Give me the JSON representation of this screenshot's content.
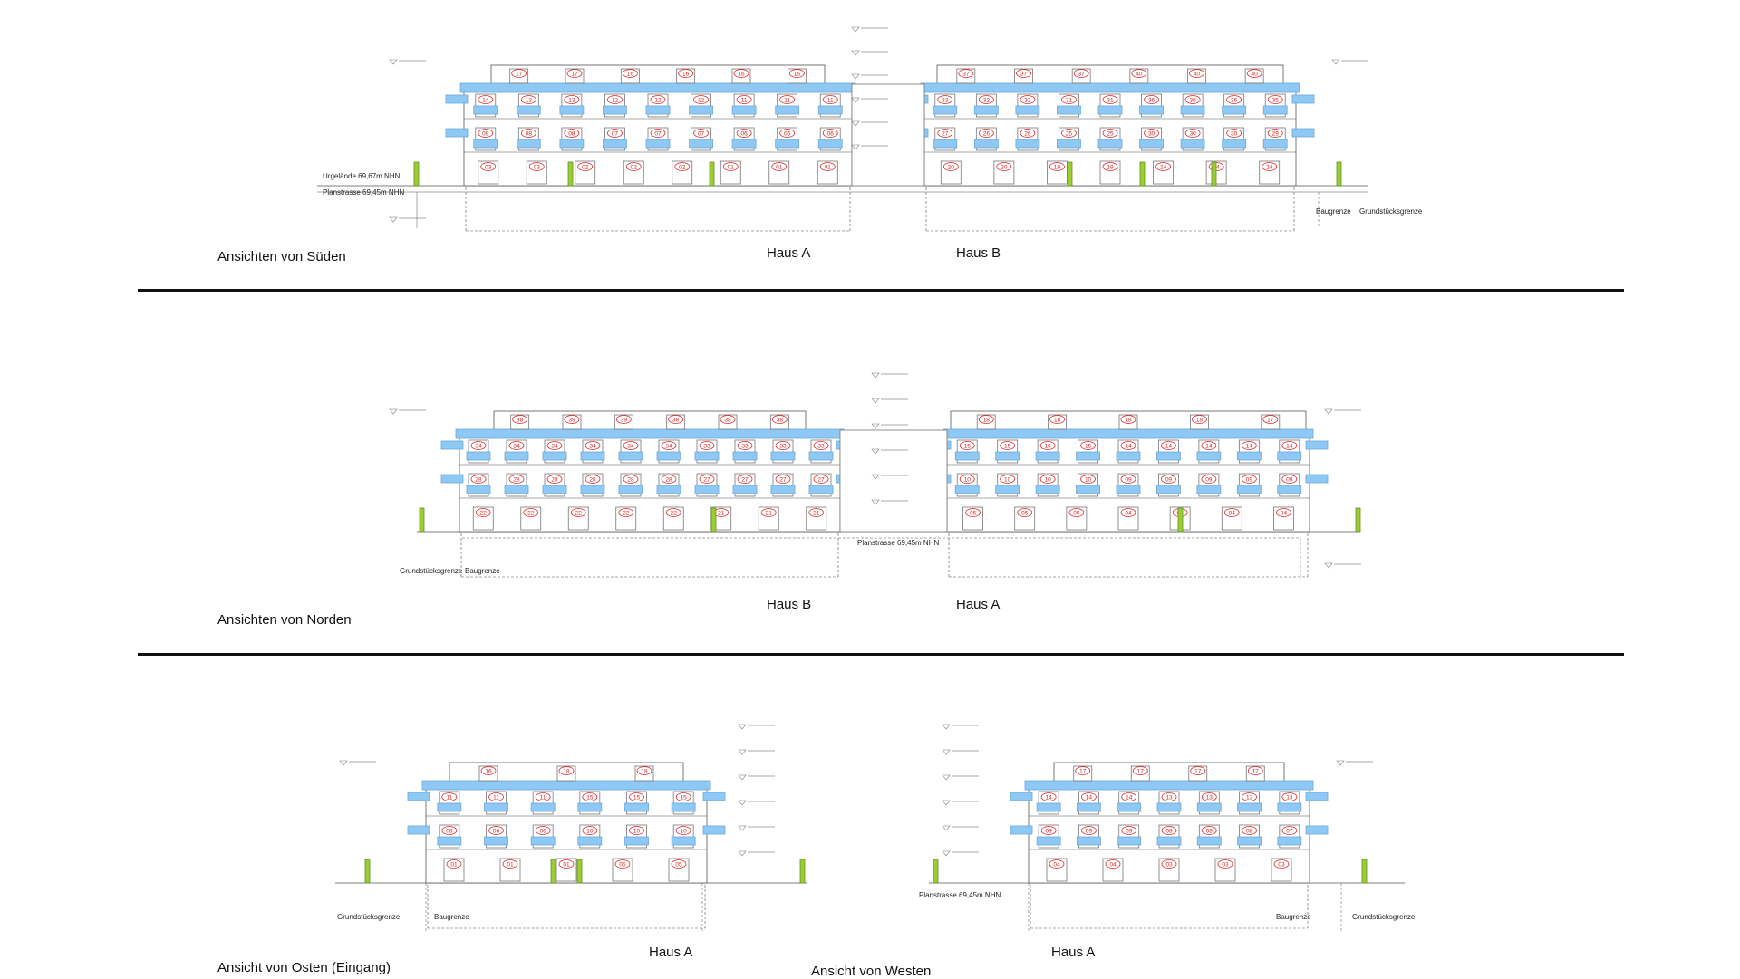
{
  "sections": {
    "sued": {
      "title": "Ansichten von Süden",
      "haus_left": "Haus A",
      "haus_right": "Haus B",
      "ann_urgelaende": "Urgelände 69,67m NHN",
      "ann_planstrasse": "Planstrasse 69,45m NHN",
      "ann_baugrenze": "Baugrenze",
      "ann_grundstueck": "Grundstücksgrenze",
      "unitsA": {
        "attic": [
          "17",
          "17",
          "16",
          "16",
          "16",
          "16"
        ],
        "f2": [
          "14",
          "13",
          "13",
          "12",
          "12",
          "12",
          "11",
          "11",
          "11"
        ],
        "f1": [
          "09",
          "08",
          "08",
          "07",
          "07",
          "07",
          "06",
          "06",
          "06"
        ],
        "eg": [
          "03",
          "03",
          "02",
          "02",
          "02",
          "01",
          "01",
          "01"
        ]
      },
      "unitsB": {
        "attic": [
          "37",
          "37",
          "37",
          "40",
          "40",
          "40"
        ],
        "f2": [
          "33",
          "32",
          "32",
          "31",
          "31",
          "36",
          "36",
          "36",
          "35"
        ],
        "f1": [
          "27",
          "26",
          "26",
          "25",
          "25",
          "30",
          "30",
          "30",
          "29"
        ],
        "eg": [
          "20",
          "20",
          "19",
          "19",
          "24",
          "24",
          "24"
        ]
      }
    },
    "nord": {
      "title": "Ansichten von Norden",
      "haus_left": "Haus B",
      "haus_right": "Haus A",
      "ann_planstrasse": "Planstrasse 69,45m NHN",
      "ann_grundstueck": "Grundstücksgrenze",
      "ann_baugrenze": "Baugrenze",
      "unitsB": {
        "attic": [
          "38",
          "39",
          "39",
          "38",
          "38",
          "38"
        ],
        "f2": [
          "34",
          "34",
          "34",
          "34",
          "34",
          "34",
          "33",
          "33",
          "33",
          "33"
        ],
        "f1": [
          "28",
          "28",
          "28",
          "28",
          "28",
          "28",
          "27",
          "27",
          "27",
          "27"
        ],
        "eg": [
          "22",
          "22",
          "22",
          "22",
          "22",
          "21",
          "21",
          "21"
        ]
      },
      "unitsA": {
        "attic": [
          "18",
          "18",
          "18",
          "18",
          "17"
        ],
        "f2": [
          "15",
          "15",
          "15",
          "15",
          "14",
          "14",
          "14",
          "14",
          "14"
        ],
        "f1": [
          "10",
          "10",
          "10",
          "10",
          "09",
          "09",
          "09",
          "09",
          "09"
        ],
        "eg": [
          "05",
          "05",
          "05",
          "04",
          "04",
          "04",
          "04"
        ]
      }
    },
    "ost": {
      "title": "Ansicht von Osten (Eingang)",
      "haus": "Haus A",
      "ann_grundstueck": "Grundstücksgrenze",
      "ann_baugrenze": "Baugrenze",
      "units": {
        "attic": [
          "16",
          "18",
          "18"
        ],
        "f2": [
          "11",
          "11",
          "11",
          "15",
          "15",
          "15"
        ],
        "f1": [
          "06",
          "06",
          "06",
          "10",
          "10",
          "10"
        ],
        "eg": [
          "01",
          "01",
          "01",
          "05",
          "05"
        ]
      }
    },
    "west": {
      "title": "Ansicht von Westen",
      "haus": "Haus A",
      "ann_planstrasse": "Planstrasse 69,45m NHN",
      "ann_baugrenze": "Baugrenze",
      "ann_grundstueck": "Grundstücksgrenze",
      "units": {
        "attic": [
          "17",
          "17",
          "17",
          "17"
        ],
        "f2": [
          "14",
          "14",
          "14",
          "13",
          "13",
          "13",
          "13"
        ],
        "f1": [
          "09",
          "09",
          "09",
          "08",
          "08",
          "08",
          "07"
        ],
        "eg": [
          "04",
          "04",
          "03",
          "03",
          "03"
        ]
      }
    }
  },
  "colors": {
    "balcony": "#8ec8f5",
    "unit_label": "#e02020",
    "tree": "#9acd32",
    "line": "#555555"
  }
}
